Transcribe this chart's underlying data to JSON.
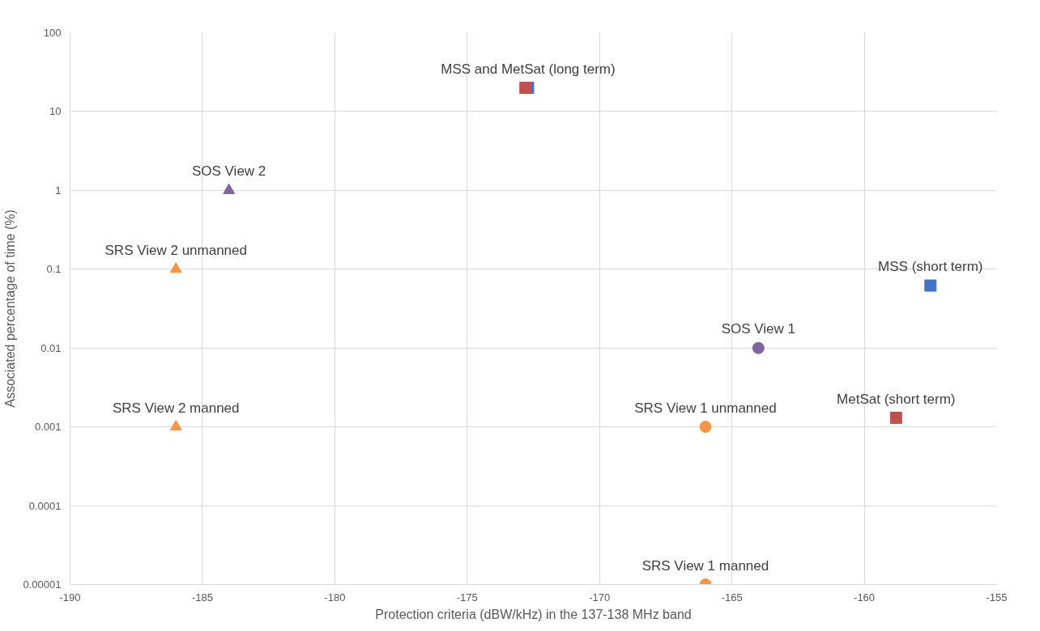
{
  "chart_data": {
    "type": "scatter",
    "xlabel": "Protection criteria (dBW/kHz) in the 137-138 MHz band",
    "ylabel": "Associated percentage of time (%)",
    "xlim": [
      -190,
      -155
    ],
    "xticks": [
      -190,
      -185,
      -180,
      -175,
      -170,
      -165,
      -160,
      -155
    ],
    "ylim": [
      1e-05,
      100
    ],
    "yticks": [
      {
        "value": 1e-05,
        "label": "0.00001"
      },
      {
        "value": 0.0001,
        "label": "0.0001"
      },
      {
        "value": 0.001,
        "label": "0.001"
      },
      {
        "value": 0.01,
        "label": "0.01"
      },
      {
        "value": 0.1,
        "label": "0.1"
      },
      1,
      10,
      100
    ],
    "log": "y",
    "grid": true,
    "series": [
      {
        "color": "#4472c4",
        "marker": "square",
        "x": [
          -172.7,
          -157.5
        ],
        "values": [
          20,
          0.062
        ]
      },
      {
        "color": "#c0504d",
        "marker": "square",
        "x": [
          -172.8,
          -158.8
        ],
        "values": [
          20,
          0.0013
        ]
      },
      {
        "color": "#8064a2",
        "marker": "triangle",
        "x": [
          -184
        ],
        "values": [
          1
        ]
      },
      {
        "color": "#f79646",
        "marker": "triangle",
        "x": [
          -186,
          -186
        ],
        "values": [
          0.1,
          0.001
        ]
      },
      {
        "color": "#8064a2",
        "marker": "circle",
        "x": [
          -164
        ],
        "values": [
          0.01
        ]
      },
      {
        "color": "#f79646",
        "marker": "circle",
        "x": [
          -166,
          -166
        ],
        "values": [
          0.001,
          1e-05
        ]
      }
    ],
    "annotations": [
      {
        "text": "MSS and MetSat (long term)",
        "x": -172.7,
        "y": 20
      },
      {
        "text": "SOS View 2",
        "x": -184,
        "y": 1
      },
      {
        "text": "SRS View 2 unmanned",
        "x": -186,
        "y": 0.1
      },
      {
        "text": "SRS View 2 manned",
        "x": -186,
        "y": 0.001
      },
      {
        "text": "MSS (short term)",
        "x": -157.5,
        "y": 0.062
      },
      {
        "text": "SOS View 1",
        "x": -164,
        "y": 0.01
      },
      {
        "text": "MetSat (short term)",
        "x": -158.8,
        "y": 0.0013
      },
      {
        "text": "SRS View 1 unmanned",
        "x": -166,
        "y": 0.001
      },
      {
        "text": "SRS View 1 manned",
        "x": -166,
        "y": 1e-05
      }
    ]
  }
}
